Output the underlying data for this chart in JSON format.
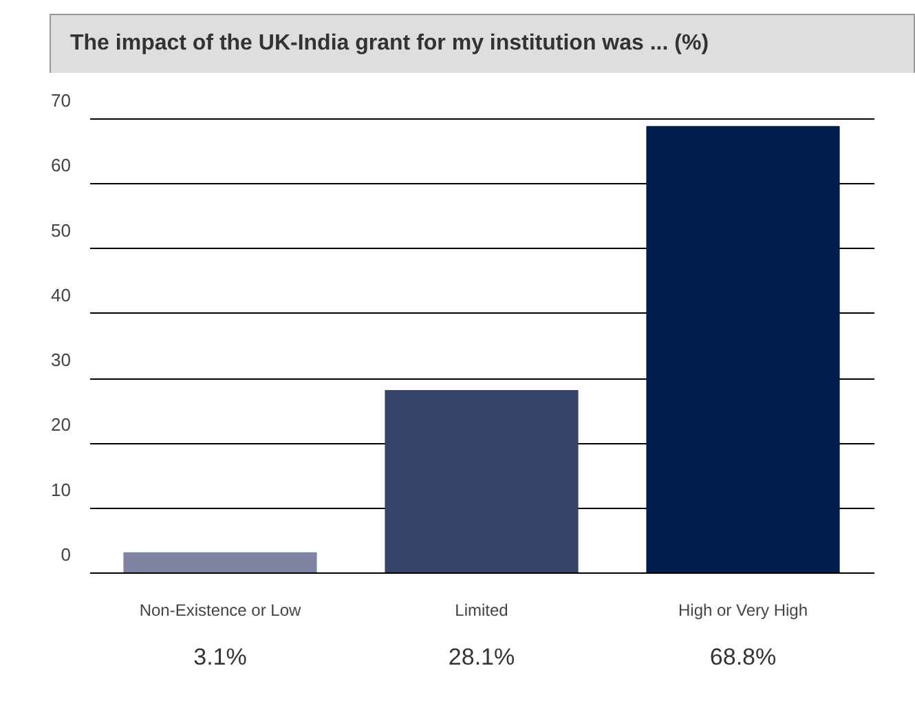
{
  "chart_data": {
    "type": "bar",
    "title": "The impact of the UK-India grant for my institution was ... (%)",
    "categories": [
      "Non-Existence or Low",
      "Limited",
      "High or Very High"
    ],
    "values": [
      3.1,
      28.1,
      68.8
    ],
    "colors": [
      "#7f84a3",
      "#34446b",
      "#001e4c"
    ],
    "value_labels": [
      "3.1%",
      "28.1%",
      "68.8%"
    ],
    "ylim": [
      0,
      70
    ],
    "yticks": [
      0,
      10,
      20,
      30,
      40,
      50,
      60,
      70
    ],
    "grid": "y"
  }
}
